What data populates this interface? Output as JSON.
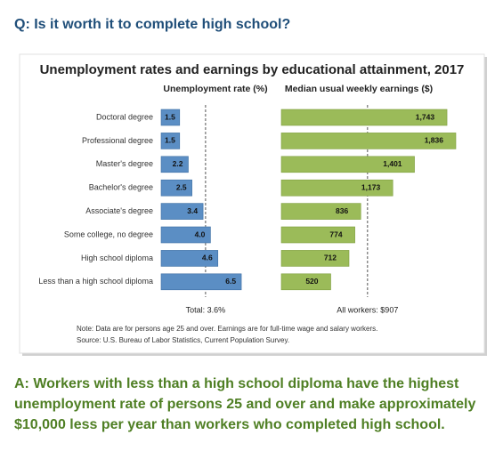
{
  "question": "Q: Is it worth it to complete high school?",
  "title": "Unemployment rates and earnings by educational attainment, 2017",
  "chart_data": [
    {
      "type": "hbar",
      "subtitle": "Unemployment rate (%)",
      "categories": [
        "Doctoral degree",
        "Professional degree",
        "Master's degree",
        "Bachelor's degree",
        "Associate's degree",
        "Some college, no degree",
        "High school diploma",
        "Less than a high school diploma"
      ],
      "values": [
        1.5,
        1.5,
        2.2,
        2.5,
        3.4,
        4.0,
        4.6,
        6.5
      ],
      "value_labels": [
        "1.5",
        "1.5",
        "2.2",
        "2.5",
        "3.4",
        "4.0",
        "4.6",
        "6.5"
      ],
      "color": "#5b8ec4",
      "xlim": [
        0,
        7
      ],
      "reference": {
        "value": 3.6,
        "label": "Total: 3.6%"
      }
    },
    {
      "type": "hbar",
      "subtitle": "Median usual weekly earnings ($)",
      "values": [
        1743,
        1836,
        1401,
        1173,
        836,
        774,
        712,
        520
      ],
      "value_labels": [
        "1,743",
        "1,836",
        "1,401",
        "1,173",
        "836",
        "774",
        "712",
        "520"
      ],
      "color": "#9bbb59",
      "xlim": [
        0,
        2000
      ],
      "reference": {
        "value": 907,
        "label": "All workers: $907"
      }
    }
  ],
  "notes": [
    "Note: Data are for persons age 25 and over. Earnings are for full-time wage and salary workers.",
    "Source: U.S. Bureau of Labor Statistics, Current Population Survey."
  ],
  "answer": [
    "A: Workers with less than a high school diploma have the highest",
    "unemployment rate of persons 25 and over and make approximately",
    "$10,000 less per year than workers who completed high school."
  ]
}
